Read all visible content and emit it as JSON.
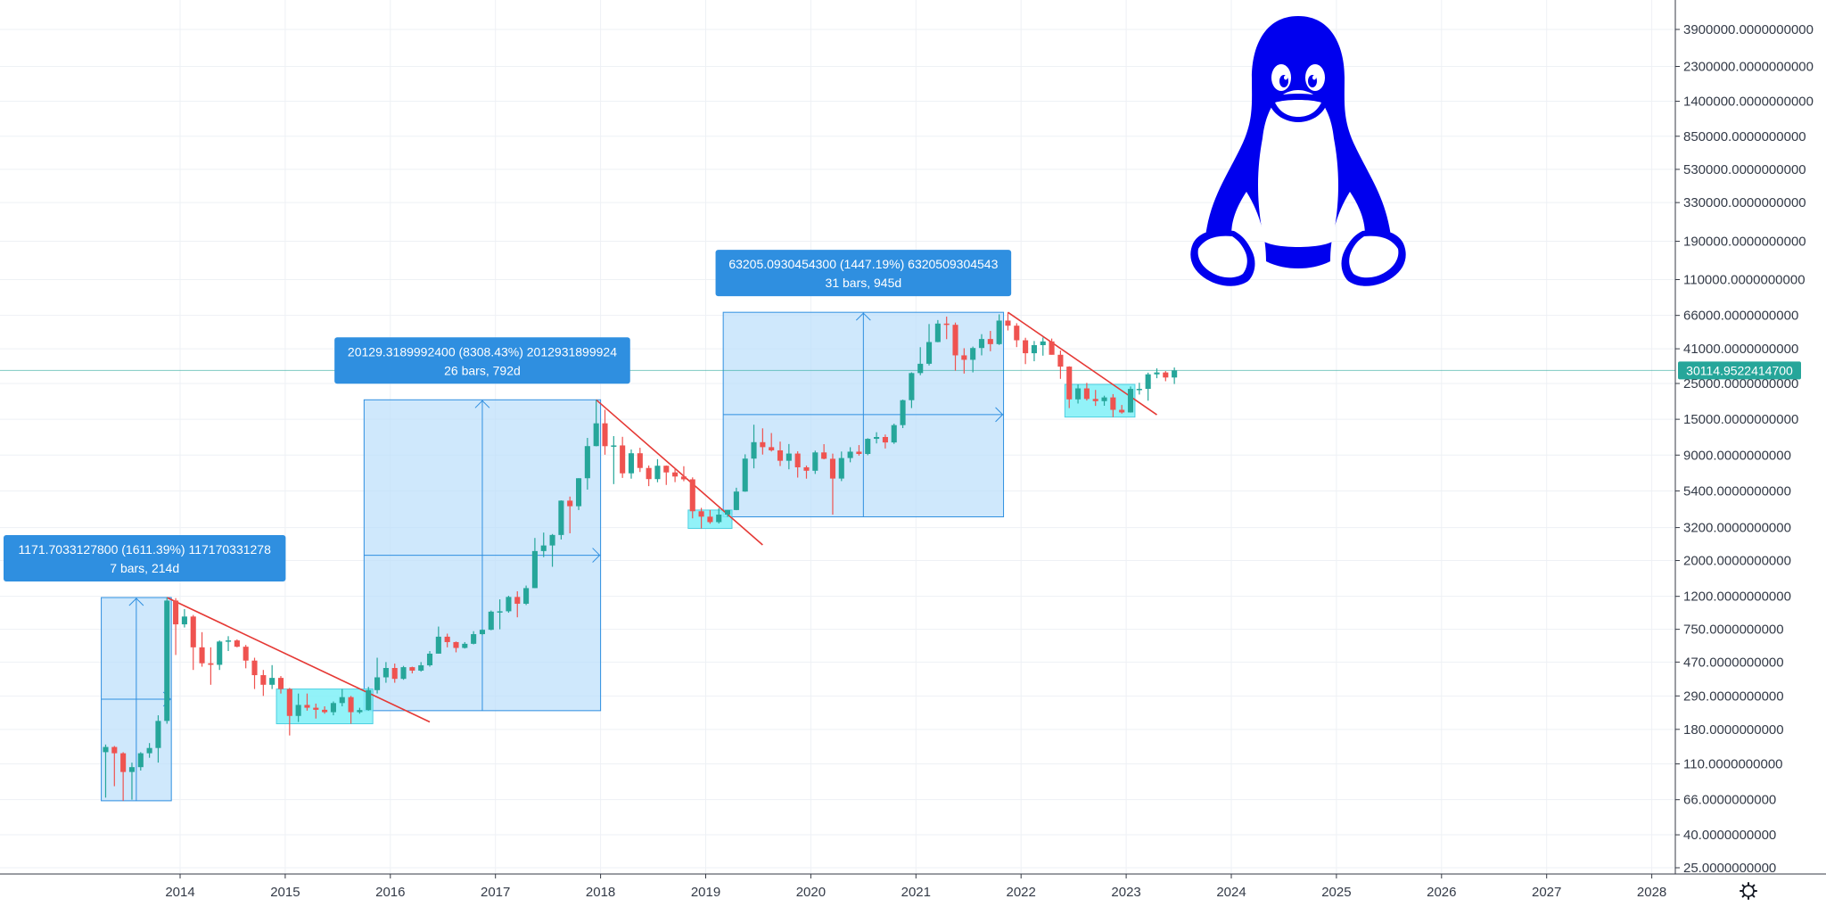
{
  "colors": {
    "up": "#26a69a",
    "down": "#ef5350",
    "trendline": "#e53935",
    "range_fill": "#bbdefb",
    "range_border": "#2f8fe0",
    "consolidation_fill": "#7ff0f7",
    "label_bg": "#2f8fe0",
    "price_tag_bg": "#26a69a",
    "logo": "#0000ee",
    "grid": "#eef1f5",
    "axis_line": "#363a45"
  },
  "chart_data": {
    "type": "candlestick",
    "symbol_interval": "1M",
    "y_scale": "log",
    "y_tick_labels": [
      "3900000.0000000000",
      "2300000.0000000000",
      "1400000.0000000000",
      "850000.0000000000",
      "530000.0000000000",
      "330000.0000000000",
      "190000.0000000000",
      "110000.0000000000",
      "66000.0000000000",
      "41000.0000000000",
      "25000.0000000000",
      "15000.0000000000",
      "9000.0000000000",
      "5400.0000000000",
      "3200.0000000000",
      "2000.0000000000",
      "1200.0000000000",
      "750.0000000000",
      "470.0000000000",
      "290.0000000000",
      "180.0000000000",
      "110.0000000000",
      "66.0000000000",
      "40.0000000000",
      "25.0000000000"
    ],
    "y_tick_values": [
      3900000,
      2300000,
      1400000,
      850000,
      530000,
      330000,
      190000,
      110000,
      66000,
      41000,
      25000,
      15000,
      9000,
      5400,
      3200,
      2000,
      1200,
      750,
      470,
      290,
      180,
      110,
      66,
      40,
      25
    ],
    "x_tick_labels": [
      "2014",
      "2015",
      "2016",
      "2017",
      "2018",
      "2019",
      "2020",
      "2021",
      "2022",
      "2023",
      "2024",
      "2025",
      "2026",
      "2027",
      "2028"
    ],
    "last_price": 30114.95224147,
    "last_price_label": "30114.9522414700",
    "candles": [
      [
        "2013-04",
        130,
        145,
        68,
        140
      ],
      [
        "2013-05",
        140,
        142,
        80,
        128
      ],
      [
        "2013-06",
        128,
        130,
        65,
        98
      ],
      [
        "2013-07",
        98,
        112,
        66,
        105
      ],
      [
        "2013-08",
        105,
        130,
        100,
        128
      ],
      [
        "2013-09",
        128,
        148,
        120,
        138
      ],
      [
        "2013-10",
        138,
        220,
        112,
        203
      ],
      [
        "2013-11",
        203,
        1180,
        195,
        1130
      ],
      [
        "2013-12",
        1130,
        1170,
        520,
        805
      ],
      [
        "2014-01",
        805,
        1000,
        770,
        900
      ],
      [
        "2014-02",
        900,
        920,
        420,
        580
      ],
      [
        "2014-03",
        580,
        720,
        440,
        462
      ],
      [
        "2014-04",
        462,
        580,
        340,
        452
      ],
      [
        "2014-05",
        452,
        640,
        420,
        630
      ],
      [
        "2014-06",
        630,
        680,
        550,
        640
      ],
      [
        "2014-07",
        640,
        650,
        580,
        585
      ],
      [
        "2014-08",
        585,
        600,
        430,
        480
      ],
      [
        "2014-09",
        480,
        500,
        320,
        390
      ],
      [
        "2014-10",
        390,
        420,
        290,
        340
      ],
      [
        "2014-11",
        340,
        450,
        320,
        375
      ],
      [
        "2014-12",
        375,
        385,
        300,
        320
      ],
      [
        "2015-01",
        320,
        325,
        165,
        218
      ],
      [
        "2015-02",
        218,
        300,
        200,
        255
      ],
      [
        "2015-03",
        255,
        300,
        235,
        245
      ],
      [
        "2015-04",
        245,
        260,
        210,
        238
      ],
      [
        "2015-05",
        238,
        250,
        225,
        230
      ],
      [
        "2015-06",
        230,
        268,
        220,
        262
      ],
      [
        "2015-07",
        262,
        320,
        250,
        285
      ],
      [
        "2015-08",
        285,
        290,
        195,
        230
      ],
      [
        "2015-09",
        230,
        245,
        225,
        237
      ],
      [
        "2015-10",
        237,
        330,
        235,
        315
      ],
      [
        "2015-11",
        315,
        500,
        300,
        378
      ],
      [
        "2015-12",
        378,
        470,
        350,
        432
      ],
      [
        "2016-01",
        432,
        460,
        350,
        370
      ],
      [
        "2016-02",
        370,
        445,
        365,
        437
      ],
      [
        "2016-03",
        437,
        440,
        400,
        416
      ],
      [
        "2016-04",
        416,
        470,
        410,
        449
      ],
      [
        "2016-05",
        449,
        550,
        440,
        530
      ],
      [
        "2016-06",
        530,
        780,
        530,
        675
      ],
      [
        "2016-07",
        675,
        705,
        580,
        625
      ],
      [
        "2016-08",
        625,
        630,
        540,
        575
      ],
      [
        "2016-09",
        575,
        625,
        570,
        610
      ],
      [
        "2016-10",
        610,
        730,
        605,
        700
      ],
      [
        "2016-11",
        700,
        750,
        690,
        745
      ],
      [
        "2016-12",
        745,
        980,
        740,
        965
      ],
      [
        "2017-01",
        965,
        1150,
        750,
        970
      ],
      [
        "2017-02",
        970,
        1210,
        950,
        1190
      ],
      [
        "2017-03",
        1190,
        1290,
        890,
        1080
      ],
      [
        "2017-04",
        1080,
        1400,
        1060,
        1350
      ],
      [
        "2017-05",
        1350,
        2760,
        1350,
        2290
      ],
      [
        "2017-06",
        2290,
        2980,
        2100,
        2480
      ],
      [
        "2017-07",
        2480,
        2920,
        1830,
        2880
      ],
      [
        "2017-08",
        2880,
        4720,
        2700,
        4700
      ],
      [
        "2017-09",
        4700,
        4980,
        2950,
        4340
      ],
      [
        "2017-10",
        4340,
        6470,
        4110,
        6470
      ],
      [
        "2017-11",
        6470,
        11500,
        5500,
        10230
      ],
      [
        "2017-12",
        10230,
        19800,
        10200,
        14160
      ],
      [
        "2018-01",
        14160,
        17180,
        9050,
        10220
      ],
      [
        "2018-02",
        10220,
        11800,
        5950,
        10330
      ],
      [
        "2018-03",
        10330,
        11680,
        6500,
        6940
      ],
      [
        "2018-04",
        6940,
        9750,
        6430,
        9240
      ],
      [
        "2018-05",
        9240,
        9990,
        7070,
        7490
      ],
      [
        "2018-06",
        7490,
        7760,
        5780,
        6390
      ],
      [
        "2018-07",
        6390,
        8490,
        6110,
        7730
      ],
      [
        "2018-08",
        7730,
        7760,
        5880,
        7030
      ],
      [
        "2018-09",
        7030,
        7410,
        6120,
        6630
      ],
      [
        "2018-10",
        6630,
        7680,
        6200,
        6370
      ],
      [
        "2018-11",
        6370,
        6550,
        3650,
        4040
      ],
      [
        "2018-12",
        4040,
        4240,
        3160,
        3740
      ],
      [
        "2019-01",
        3740,
        4110,
        3380,
        3460
      ],
      [
        "2019-02",
        3460,
        4220,
        3390,
        3850
      ],
      [
        "2019-03",
        3850,
        4110,
        3730,
        4110
      ],
      [
        "2019-04",
        4110,
        5650,
        4100,
        5350
      ],
      [
        "2019-05",
        5350,
        9100,
        5330,
        8560
      ],
      [
        "2019-06",
        8560,
        13880,
        7450,
        10820
      ],
      [
        "2019-07",
        10820,
        13180,
        9070,
        10080
      ],
      [
        "2019-08",
        10080,
        12330,
        9470,
        9630
      ],
      [
        "2019-09",
        9630,
        10910,
        7700,
        8300
      ],
      [
        "2019-10",
        8300,
        10540,
        7350,
        9200
      ],
      [
        "2019-11",
        9200,
        9500,
        6530,
        7560
      ],
      [
        "2019-12",
        7560,
        7750,
        6430,
        7200
      ],
      [
        "2020-01",
        7200,
        9590,
        6880,
        9350
      ],
      [
        "2020-02",
        9350,
        10520,
        8470,
        8540
      ],
      [
        "2020-03",
        8540,
        9190,
        3850,
        6440
      ],
      [
        "2020-04",
        6440,
        9470,
        6210,
        8630
      ],
      [
        "2020-05",
        8630,
        10070,
        8120,
        9450
      ],
      [
        "2020-06",
        9450,
        10380,
        8930,
        9150
      ],
      [
        "2020-07",
        9150,
        11450,
        8980,
        11350
      ],
      [
        "2020-08",
        11350,
        12470,
        10630,
        11650
      ],
      [
        "2020-09",
        11650,
        12070,
        9890,
        10780
      ],
      [
        "2020-10",
        10780,
        14100,
        10560,
        13800
      ],
      [
        "2020-11",
        13800,
        19860,
        13230,
        19700
      ],
      [
        "2020-12",
        19700,
        29300,
        17600,
        28990
      ],
      [
        "2021-01",
        28990,
        41950,
        28130,
        33110
      ],
      [
        "2021-02",
        33110,
        58350,
        32300,
        45140
      ],
      [
        "2021-03",
        45140,
        61780,
        45000,
        58740
      ],
      [
        "2021-04",
        58740,
        64850,
        47040,
        57720
      ],
      [
        "2021-05",
        57720,
        59590,
        30000,
        37330
      ],
      [
        "2021-06",
        37330,
        41330,
        28800,
        35040
      ],
      [
        "2021-07",
        35040,
        42320,
        29280,
        41460
      ],
      [
        "2021-08",
        41460,
        50500,
        37330,
        47130
      ],
      [
        "2021-09",
        47130,
        52920,
        39600,
        43820
      ],
      [
        "2021-10",
        43820,
        67000,
        43300,
        61300
      ],
      [
        "2021-11",
        61300,
        69000,
        53250,
        57000
      ],
      [
        "2021-12",
        57000,
        59050,
        42000,
        46300
      ],
      [
        "2022-01",
        46300,
        47990,
        32950,
        38480
      ],
      [
        "2022-02",
        38480,
        45820,
        34320,
        43180
      ],
      [
        "2022-03",
        43180,
        48190,
        37170,
        45530
      ],
      [
        "2022-04",
        45530,
        47440,
        37700,
        37640
      ],
      [
        "2022-05",
        37640,
        40020,
        26700,
        31790
      ],
      [
        "2022-06",
        31790,
        31950,
        17600,
        19930
      ],
      [
        "2022-07",
        19930,
        24670,
        18780,
        23300
      ],
      [
        "2022-08",
        23300,
        25210,
        19600,
        20050
      ],
      [
        "2022-09",
        20050,
        22800,
        18150,
        19430
      ],
      [
        "2022-10",
        19430,
        21000,
        18190,
        20490
      ],
      [
        "2022-11",
        20490,
        21480,
        15480,
        17170
      ],
      [
        "2022-12",
        17170,
        18390,
        16260,
        16540
      ],
      [
        "2023-01",
        16540,
        23950,
        16500,
        23130
      ],
      [
        "2023-02",
        23130,
        25250,
        21350,
        23150
      ],
      [
        "2023-03",
        23150,
        29180,
        19550,
        28480
      ],
      [
        "2023-04",
        28480,
        31000,
        26940,
        29250
      ],
      [
        "2023-05",
        29250,
        29830,
        25810,
        27220
      ],
      [
        "2023-06",
        27220,
        31400,
        24800,
        30115
      ]
    ],
    "annotations": [
      {
        "line1": "1171.7033127800 (1611.39%) 117170331278",
        "line2": "7 bars, 214d"
      },
      {
        "line1": "20129.3189992400 (8308.43%) 2012931899924",
        "line2": "26 bars, 792d"
      },
      {
        "line1": "63205.0930454300 (1447.19%) 6320509304543",
        "line2": "31 bars, 945d"
      }
    ],
    "ranges": [
      {
        "start": "2013-04",
        "end": "2013-11",
        "low": 65,
        "high": 1180
      },
      {
        "start": "2015-10",
        "end": "2017-12",
        "low": 235,
        "high": 19800
      },
      {
        "start": "2019-03",
        "end": "2021-10",
        "low": 3730,
        "high": 69000
      }
    ],
    "consolidations": [
      {
        "start": "2014-12",
        "end": "2015-10",
        "low": 195,
        "high": 320
      },
      {
        "start": "2018-11",
        "end": "2019-03",
        "low": 3160,
        "high": 4110
      },
      {
        "start": "2022-06",
        "end": "2023-01",
        "low": 15480,
        "high": 24670
      }
    ],
    "trendlines": [
      {
        "from": [
          "2013-11",
          1180
        ],
        "to": [
          "2016-05",
          200
        ]
      },
      {
        "from": [
          "2017-12",
          19800
        ],
        "to": [
          "2019-07",
          2500
        ]
      },
      {
        "from": [
          "2021-11",
          69000
        ],
        "to": [
          "2023-04",
          16000
        ]
      }
    ]
  },
  "settings_icon": "gear-icon",
  "logo_icon": "penguin-icon"
}
